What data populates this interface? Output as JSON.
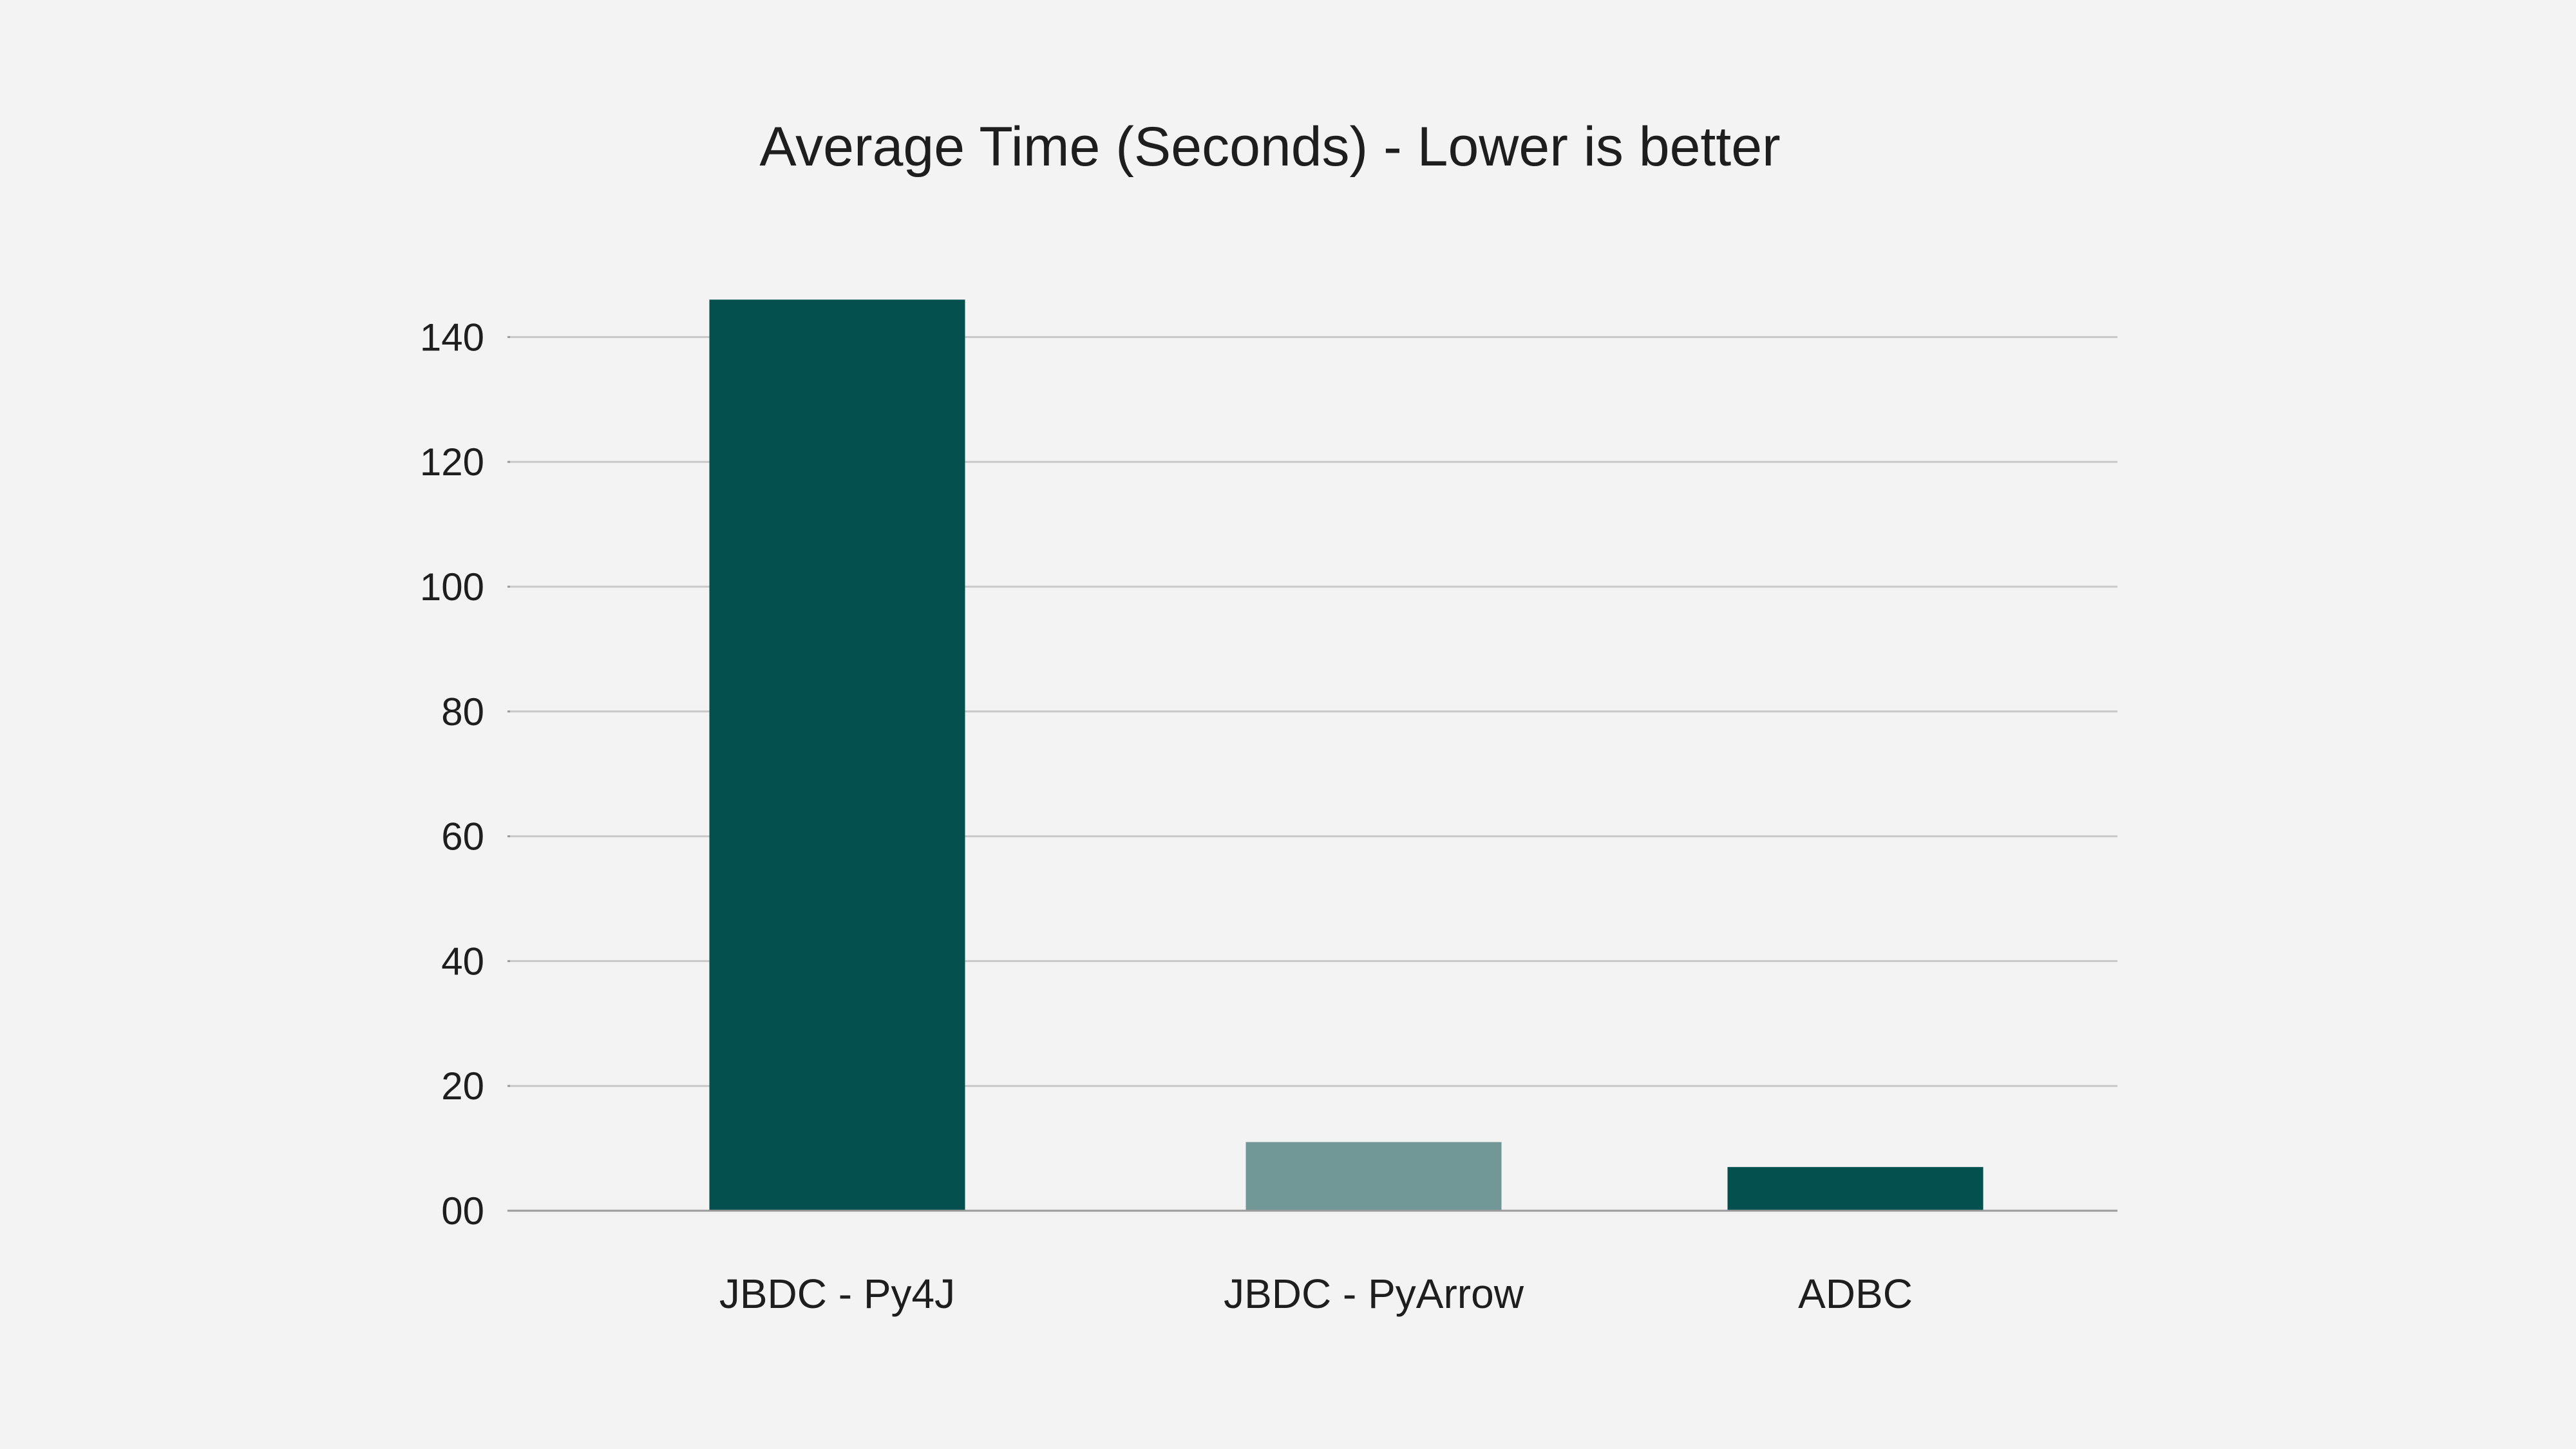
{
  "chart_data": {
    "type": "bar",
    "title": "Average Time (Seconds) - Lower is better",
    "xlabel": "",
    "ylabel": "",
    "categories": [
      "JBDC - Py4J",
      "JBDC - PyArrow",
      "ADBC"
    ],
    "values": [
      146,
      11,
      7
    ],
    "bar_colors": [
      "#03504f",
      "#719796",
      "#03504f"
    ],
    "ylim": [
      0,
      146
    ],
    "yticks": [
      0,
      20,
      40,
      60,
      80,
      100,
      120,
      140
    ],
    "ytick_labels": [
      "00",
      "20",
      "40",
      "60",
      "80",
      "100",
      "120",
      "140"
    ],
    "grid": true,
    "legend": "none"
  },
  "colors": {
    "background": "#f3f3f3",
    "text": "#1e1e1e",
    "grid": "#c8c8c8",
    "axis": "#9a9a9a"
  }
}
